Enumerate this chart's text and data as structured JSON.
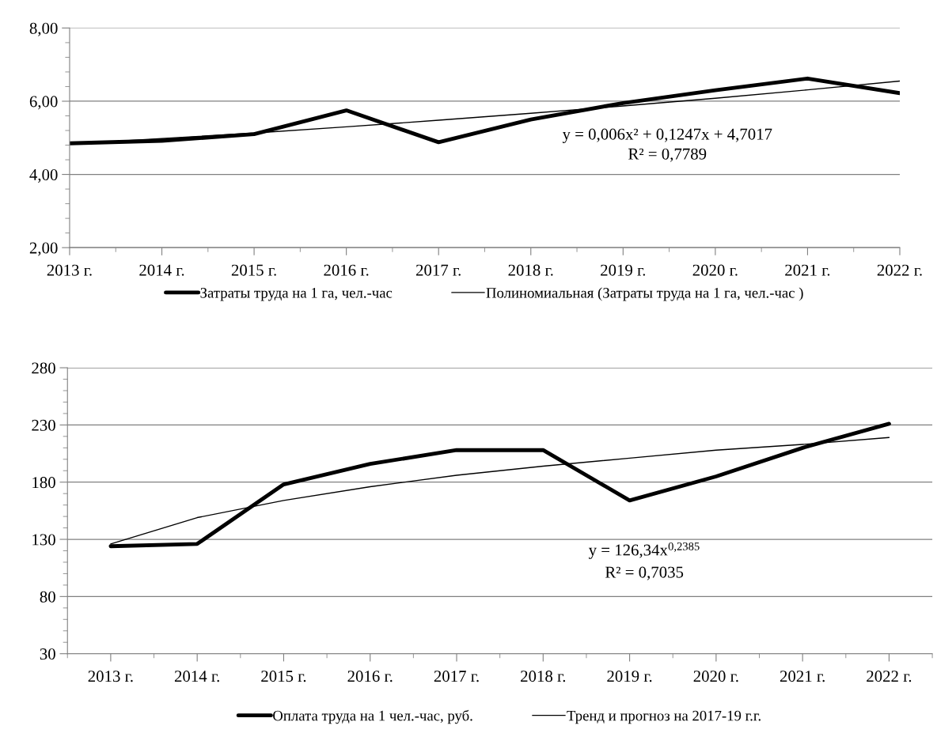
{
  "chart_data": [
    {
      "type": "line",
      "categories": [
        "2013 г.",
        "2014 г.",
        "2015 г.",
        "2016 г.",
        "2017 г.",
        "2018 г.",
        "2019 г.",
        "2020 г.",
        "2021 г.",
        "2022 г."
      ],
      "series": [
        {
          "name": "Затраты труда на 1 га, чел.-час",
          "color": "#000000",
          "values": [
            4.85,
            4.92,
            5.1,
            5.75,
            4.88,
            5.5,
            5.95,
            6.3,
            6.62,
            6.22
          ]
        },
        {
          "name": "Полиномиальная (Затраты труда на 1 га, чел.-час )",
          "color": "#000000",
          "values": [
            4.83,
            4.98,
            5.13,
            5.3,
            5.48,
            5.67,
            5.87,
            6.08,
            6.31,
            6.55
          ]
        }
      ],
      "ylim": [
        2,
        8
      ],
      "yticks": [
        {
          "value": 2,
          "label": "2,00"
        },
        {
          "value": 4,
          "label": "4,00"
        },
        {
          "value": 6,
          "label": "6,00"
        },
        {
          "value": 8,
          "label": "8,00"
        }
      ],
      "grid": "y",
      "legend": "bottom",
      "annotations": [
        "y = 0,006x² + 0,1247x + 4,7017",
        "R² = 0,7789"
      ]
    },
    {
      "type": "line",
      "categories": [
        "2013 г.",
        "2014 г.",
        "2015 г.",
        "2016 г.",
        "2017 г.",
        "2018 г.",
        "2019 г.",
        "2020 г.",
        "2021 г.",
        "2022 г."
      ],
      "series": [
        {
          "name": "Оплата труда на 1 чел.-час, руб.",
          "color": "#000000",
          "values": [
            124,
            126,
            178,
            196,
            208,
            208,
            164,
            185,
            210,
            231
          ]
        },
        {
          "name": "Тренд и прогноз на 2017-19 г.г.",
          "color": "#000000",
          "values": [
            126,
            149,
            164,
            176,
            186,
            194,
            201,
            208,
            213,
            219
          ]
        }
      ],
      "ylim": [
        30,
        280
      ],
      "yticks": [
        30,
        80,
        130,
        180,
        230,
        280
      ],
      "grid": "y",
      "legend": "bottom",
      "annotations": [
        "y = 126,34x$^{0,2385}$",
        "R² = 0,7035"
      ]
    }
  ]
}
